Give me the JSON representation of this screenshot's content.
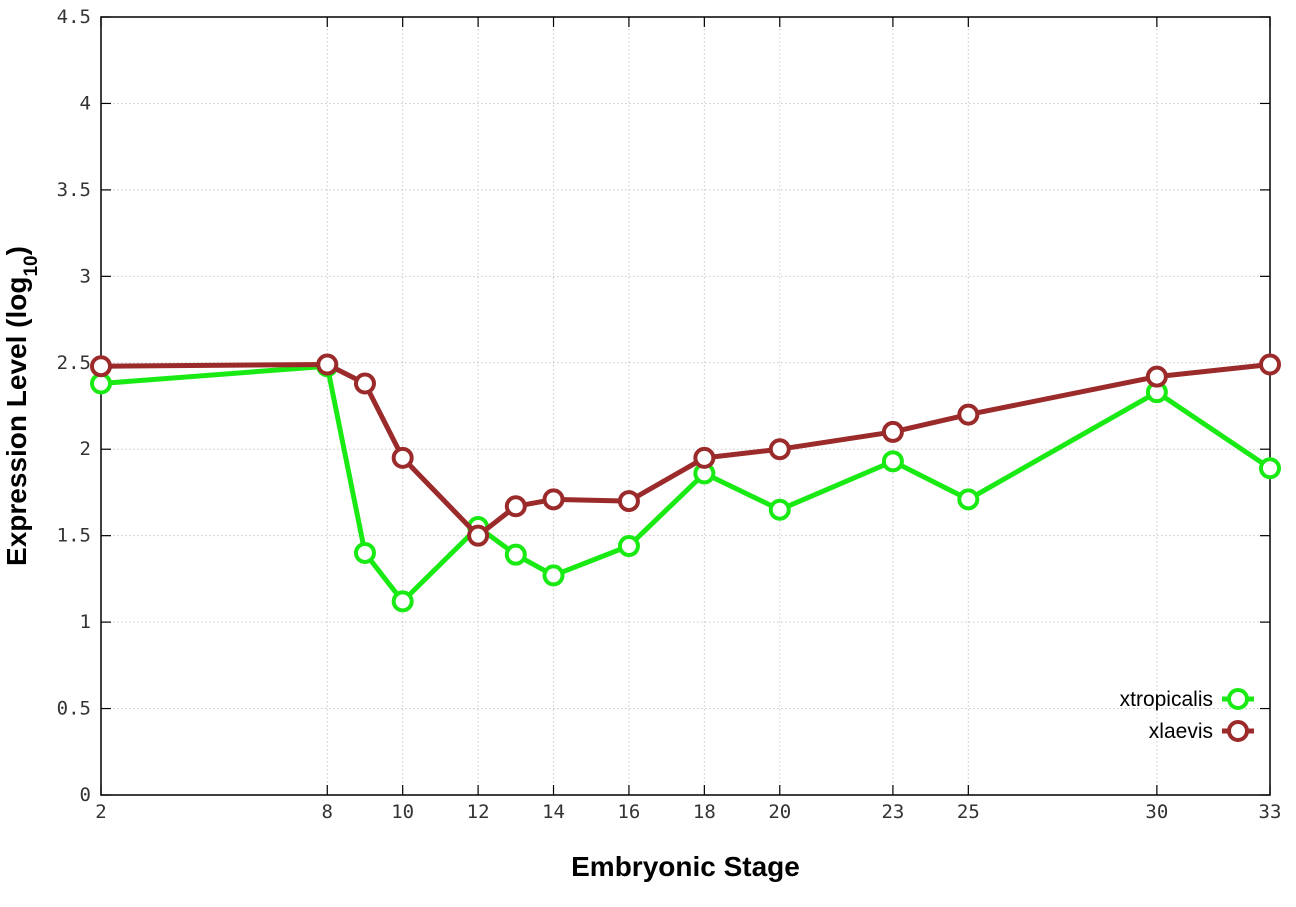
{
  "chart_data": {
    "type": "line",
    "title": "",
    "xlabel": "Embryonic Stage",
    "ylabel_main": "Expression Level (log",
    "ylabel_sub": "10",
    "ylabel_close": ")",
    "x": [
      2,
      8,
      9,
      10,
      12,
      13,
      14,
      16,
      18,
      20,
      23,
      25,
      30,
      33
    ],
    "xticks": [
      2,
      8,
      10,
      12,
      14,
      16,
      18,
      20,
      23,
      25,
      30,
      33
    ],
    "xtick_labels": [
      "2",
      "8",
      "10",
      "12",
      "14",
      "16",
      "18",
      "20",
      "23",
      "25",
      "30",
      "33"
    ],
    "yticks": [
      0,
      0.5,
      1,
      1.5,
      2,
      2.5,
      3,
      3.5,
      4,
      4.5
    ],
    "ytick_labels": [
      "0",
      "0.5",
      "1",
      "1.5",
      "2",
      "2.5",
      "3",
      "3.5",
      "4",
      "4.5"
    ],
    "xlim": [
      2,
      33
    ],
    "ylim": [
      0,
      4.5
    ],
    "grid": true,
    "legend_position": "bottom-right",
    "series": [
      {
        "name": "xtropicalis",
        "color": "#1aea14",
        "values": [
          2.38,
          2.48,
          1.4,
          1.12,
          1.55,
          1.39,
          1.27,
          1.44,
          1.86,
          1.65,
          1.93,
          1.71,
          2.33,
          1.89
        ]
      },
      {
        "name": "xlaevis",
        "color": "#9b2a2a",
        "values": [
          2.48,
          2.49,
          2.38,
          1.95,
          1.5,
          1.67,
          1.71,
          1.7,
          1.95,
          2.0,
          2.1,
          2.2,
          2.42,
          2.49
        ]
      }
    ]
  }
}
